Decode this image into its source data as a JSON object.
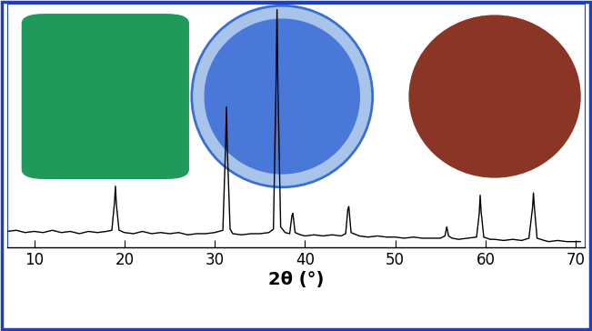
{
  "chart_data": {
    "type": "line",
    "x_label": "2θ (°)",
    "x": [
      7,
      8,
      9,
      10,
      11,
      12,
      13,
      14,
      15,
      16,
      17,
      18,
      18.6,
      18.9,
      19.0,
      19.1,
      19.4,
      20,
      21,
      22,
      23,
      24,
      25,
      26,
      27,
      28,
      29,
      30,
      30.9,
      31.2,
      31.3,
      31.4,
      31.7,
      32,
      33,
      34,
      35,
      36,
      36.5,
      36.8,
      36.9,
      37.0,
      37.3,
      37.8,
      38.3,
      38.55,
      38.65,
      38.9,
      39.5,
      40,
      41,
      42,
      43,
      44,
      44.5,
      44.75,
      44.85,
      45.1,
      46,
      47,
      48,
      49,
      50,
      51,
      52,
      53,
      54,
      55,
      55.5,
      55.7,
      55.9,
      56.3,
      57,
      58,
      59,
      59.3,
      59.4,
      59.5,
      59.8,
      60.5,
      61,
      62,
      63,
      64,
      64.8,
      65.2,
      65.3,
      65.4,
      65.7,
      66.5,
      67,
      68,
      69,
      70,
      70.5
    ],
    "values": [
      14,
      15,
      13,
      14,
      13,
      15,
      13,
      14,
      12,
      14,
      13,
      14,
      15,
      40,
      54,
      38,
      15,
      13,
      12,
      14,
      12,
      13,
      12,
      13,
      11,
      12,
      12,
      13,
      15,
      90,
      124,
      85,
      16,
      12,
      11,
      12,
      12,
      13,
      16,
      150,
      210,
      140,
      18,
      13,
      12,
      28,
      30,
      13,
      11,
      10,
      11,
      10,
      11,
      10,
      12,
      34,
      36,
      13,
      10,
      9,
      10,
      9,
      9,
      8,
      9,
      8,
      8,
      8,
      10,
      18,
      10,
      8,
      7,
      8,
      9,
      30,
      46,
      32,
      9,
      7,
      7,
      6,
      7,
      6,
      8,
      35,
      48,
      36,
      8,
      6,
      5,
      6,
      5,
      5,
      5
    ],
    "color": "#000000",
    "xlim": [
      7,
      71
    ],
    "xticks": [
      10,
      20,
      30,
      40,
      50,
      60,
      70
    ],
    "ylim": [
      0,
      215
    ],
    "yticks": [],
    "tick_labels": "x",
    "grid": false
  }
}
